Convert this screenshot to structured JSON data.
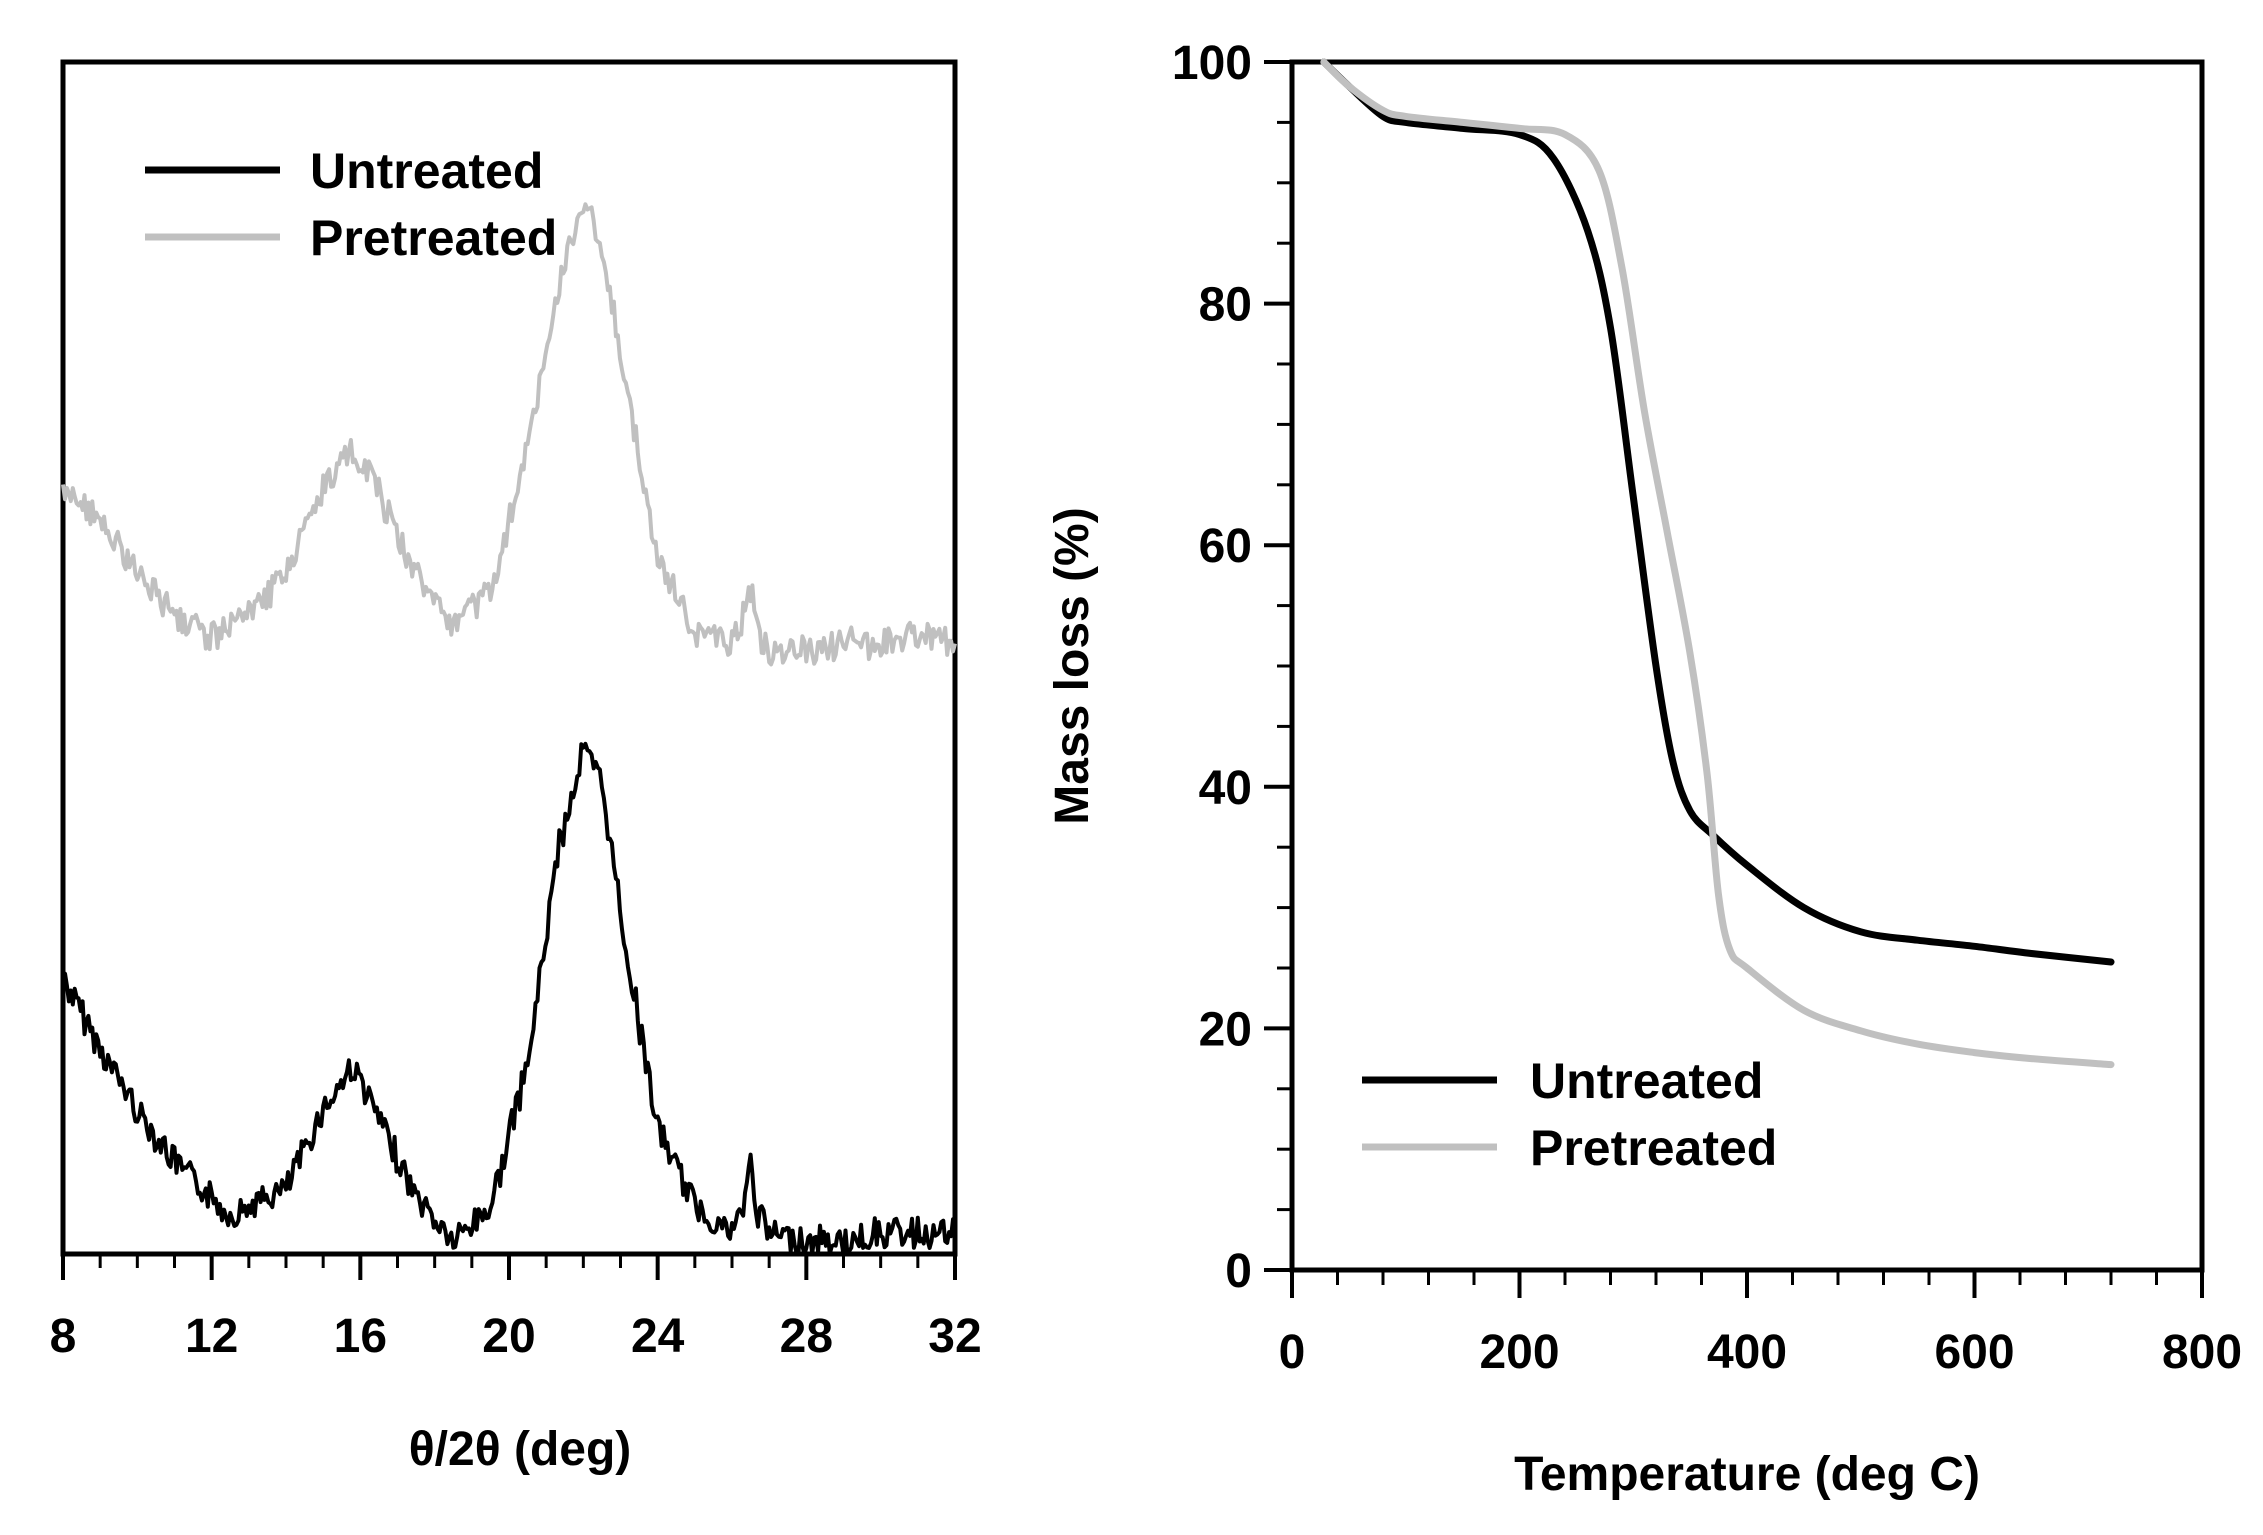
{
  "chart_data": [
    {
      "type": "line",
      "title": "",
      "xlabel": "θ/2θ (deg)",
      "ylabel": "",
      "xlim": [
        8,
        32
      ],
      "x_ticks": [
        "8",
        "12",
        "16",
        "20",
        "24",
        "28",
        "32"
      ],
      "x_tick_values": [
        8,
        12,
        16,
        20,
        24,
        28,
        32
      ],
      "y_ticks_shown": false,
      "grid": false,
      "legend_position": "top-left",
      "series": [
        {
          "name": "Untreated",
          "color": "#000000",
          "x": [
            8,
            9,
            10,
            11,
            12,
            12.5,
            13,
            14,
            15,
            15.8,
            16.5,
            17.5,
            18.5,
            19.5,
            20.5,
            21.3,
            22,
            22.5,
            23.2,
            24,
            25,
            26,
            26.3,
            26.5,
            26.7,
            27,
            28,
            29,
            30,
            31,
            32
          ],
          "values": [
            0.3,
            0.22,
            0.15,
            0.09,
            0.05,
            0.03,
            0.04,
            0.06,
            0.15,
            0.2,
            0.14,
            0.05,
            0.0,
            0.04,
            0.2,
            0.44,
            0.56,
            0.52,
            0.32,
            0.13,
            0.04,
            0.01,
            0.04,
            0.09,
            0.03,
            0.01,
            0.0,
            0.0,
            0.01,
            0.01,
            0.01
          ]
        },
        {
          "name": "Pretreated",
          "color": "#c0c0c0",
          "x": [
            8,
            9,
            10,
            11,
            12,
            13,
            14,
            15,
            15.8,
            16.5,
            17.5,
            18.5,
            19.5,
            20.5,
            21.3,
            22,
            22.5,
            23.2,
            24,
            25,
            26,
            26.3,
            26.5,
            26.7,
            27,
            28,
            29,
            30,
            31,
            32
          ],
          "values": [
            0.86,
            0.82,
            0.76,
            0.71,
            0.69,
            0.71,
            0.76,
            0.86,
            0.9,
            0.85,
            0.76,
            0.7,
            0.74,
            0.9,
            1.08,
            1.18,
            1.13,
            0.96,
            0.78,
            0.69,
            0.68,
            0.71,
            0.74,
            0.69,
            0.67,
            0.67,
            0.68,
            0.68,
            0.69,
            0.68
          ]
        }
      ]
    },
    {
      "type": "line",
      "title": "",
      "xlabel": "Temperature (deg C)",
      "ylabel": "Mass loss (%)",
      "xlim": [
        0,
        800
      ],
      "ylim": [
        0,
        100
      ],
      "x_ticks": [
        "0",
        "200",
        "400",
        "600",
        "800"
      ],
      "x_tick_values": [
        0,
        200,
        400,
        600,
        800
      ],
      "y_ticks": [
        "0",
        "20",
        "40",
        "60",
        "80",
        "100"
      ],
      "y_tick_values": [
        0,
        20,
        40,
        60,
        80,
        100
      ],
      "grid": false,
      "legend_position": "bottom-left",
      "series": [
        {
          "name": "Untreated",
          "color": "#000000",
          "x": [
            28,
            50,
            80,
            100,
            150,
            200,
            230,
            260,
            280,
            300,
            320,
            335,
            350,
            370,
            400,
            450,
            500,
            550,
            600,
            650,
            720
          ],
          "values": [
            100,
            98,
            95.5,
            95,
            94.5,
            94,
            92,
            86,
            78,
            64,
            50,
            42,
            38,
            36,
            33.5,
            30,
            28,
            27.3,
            26.8,
            26.2,
            25.5
          ]
        },
        {
          "name": "Pretreated",
          "color": "#c0c0c0",
          "x": [
            28,
            50,
            80,
            100,
            150,
            200,
            240,
            270,
            290,
            310,
            330,
            350,
            365,
            375,
            385,
            400,
            450,
            500,
            550,
            600,
            650,
            720
          ],
          "values": [
            100,
            98,
            96,
            95.5,
            95,
            94.5,
            94,
            91,
            83,
            71,
            61,
            51,
            41,
            31,
            26.5,
            25,
            21.5,
            19.8,
            18.7,
            18,
            17.5,
            17
          ]
        }
      ]
    }
  ]
}
